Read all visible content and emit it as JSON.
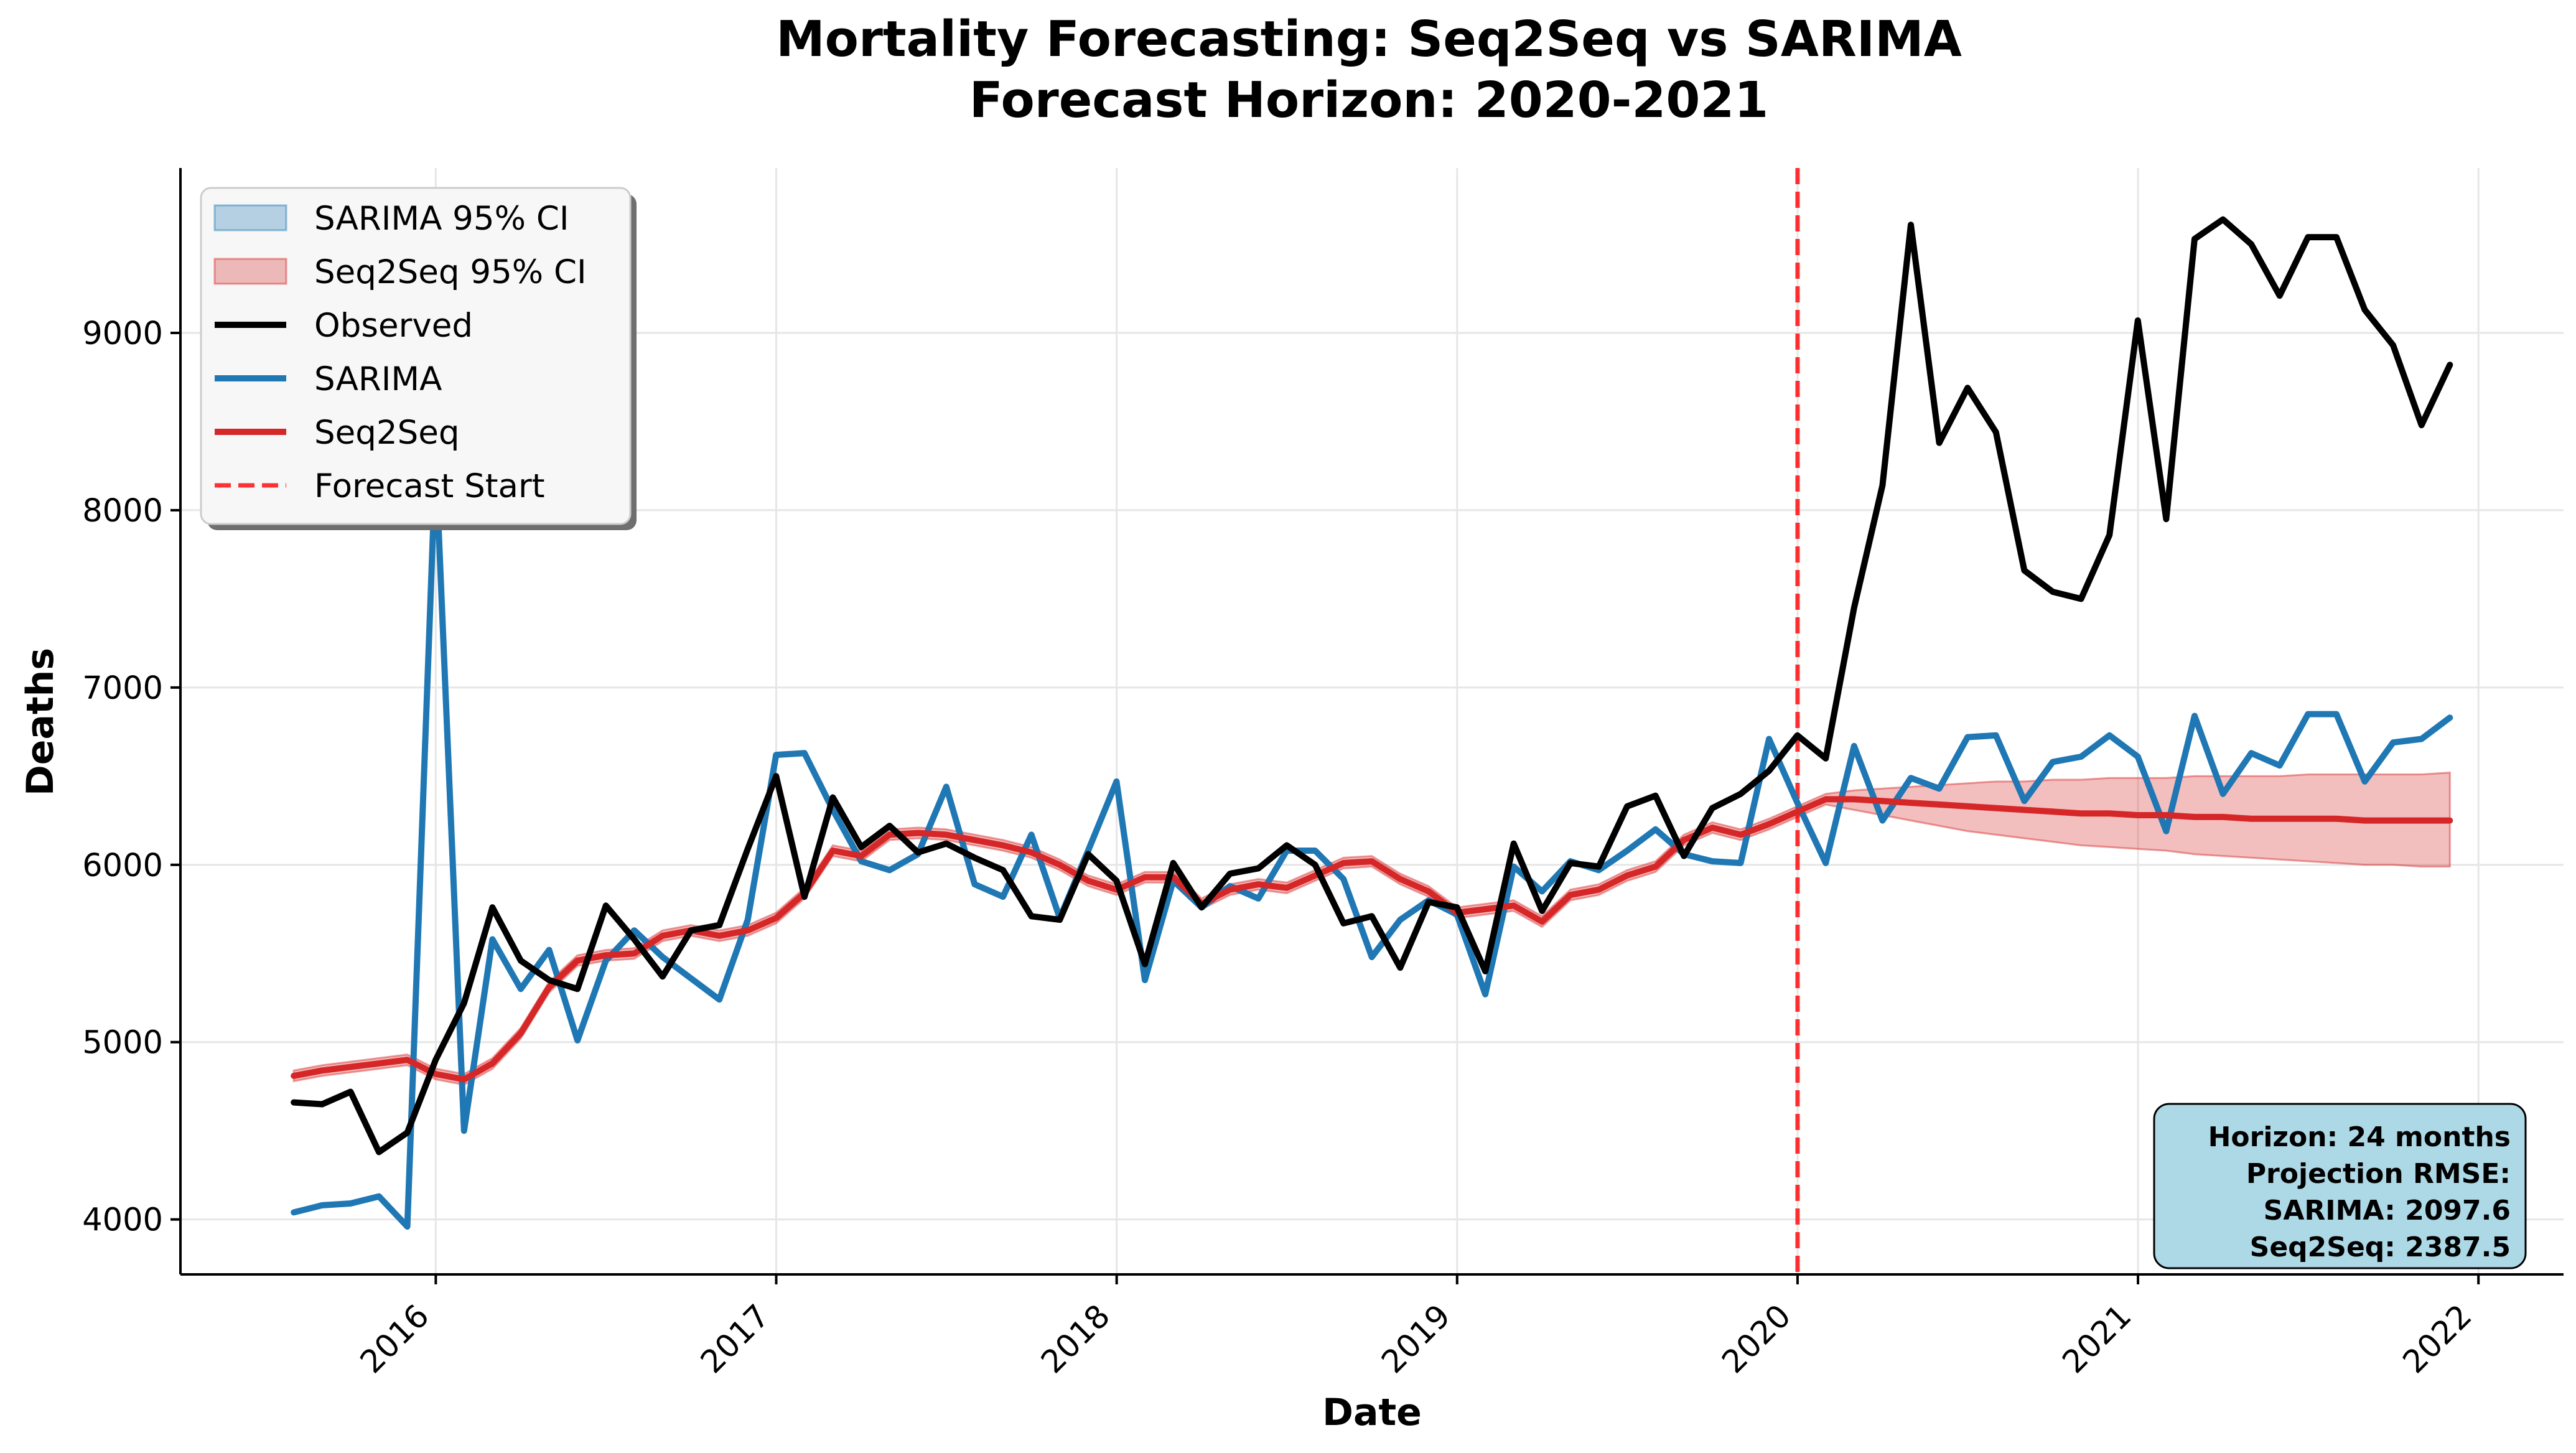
{
  "chart_data": {
    "type": "line",
    "title": [
      "Mortality Forecasting: Seq2Seq vs SARIMA",
      "Forecast Horizon: 2020-2021"
    ],
    "xlabel": "Date",
    "ylabel": "Deaths",
    "xlim": [
      2015.25,
      2022.25
    ],
    "ylim": [
      3690,
      9930
    ],
    "x_ticks": [
      2016,
      2017,
      2018,
      2019,
      2020,
      2021,
      2022
    ],
    "x_tick_labels": [
      "2016",
      "2017",
      "2018",
      "2019",
      "2020",
      "2021",
      "2022"
    ],
    "y_ticks": [
      4000,
      5000,
      6000,
      7000,
      8000,
      9000
    ],
    "y_tick_labels": [
      "4000",
      "5000",
      "6000",
      "7000",
      "8000",
      "9000"
    ],
    "grid": true,
    "legend_position": "upper-left",
    "x_start": 2015.583,
    "x_step": 0.08333,
    "forecast_start": 2020.0,
    "forecast_start_label": "Forecast Start",
    "series": [
      {
        "name": "Observed",
        "color": "#000000",
        "values": [
          4660,
          4650,
          4720,
          4380,
          4490,
          4900,
          5220,
          5760,
          5460,
          5350,
          5300,
          5770,
          5580,
          5370,
          5630,
          5660,
          6090,
          6500,
          5820,
          6380,
          6100,
          6220,
          6070,
          6120,
          6040,
          5970,
          5710,
          5690,
          6060,
          5910,
          5440,
          6010,
          5760,
          5950,
          5980,
          6110,
          6000,
          5670,
          5710,
          5420,
          5790,
          5760,
          5400,
          6120,
          5740,
          6010,
          5990,
          6330,
          6390,
          6050,
          6320,
          6400,
          6530,
          6730,
          6600,
          7450,
          8140,
          9610,
          8380,
          8690,
          8440,
          7660,
          7540,
          7500,
          7860,
          9070,
          7950,
          9530,
          9640,
          9500,
          9210,
          9540,
          9540,
          9130,
          8930,
          8480,
          8820
        ]
      },
      {
        "name": "SARIMA",
        "color": "#1f77b4",
        "values": [
          4040,
          4080,
          4090,
          4130,
          3960,
          8290,
          4500,
          5580,
          5300,
          5520,
          5010,
          5460,
          5630,
          5480,
          5360,
          5240,
          5690,
          6620,
          6630,
          6310,
          6020,
          5970,
          6060,
          6440,
          5890,
          5820,
          6170,
          5700,
          6080,
          6470,
          5350,
          5910,
          5760,
          5880,
          5810,
          6080,
          6080,
          5920,
          5480,
          5690,
          5800,
          5720,
          5270,
          5990,
          5850,
          6020,
          5970,
          6080,
          6200,
          6060,
          6020,
          6010,
          6710,
          6350,
          6010,
          6670,
          6250,
          6490,
          6430,
          6720,
          6730,
          6360,
          6580,
          6610,
          6730,
          6610,
          6190,
          6840,
          6400,
          6630,
          6560,
          6850,
          6850,
          6470,
          6690,
          6710,
          6830
        ]
      },
      {
        "name": "Seq2Seq",
        "color": "#d62728",
        "values": [
          4810,
          4840,
          4860,
          4880,
          4900,
          4820,
          4790,
          4880,
          5050,
          5310,
          5460,
          5490,
          5500,
          5600,
          5630,
          5600,
          5630,
          5700,
          5840,
          6080,
          6050,
          6170,
          6180,
          6170,
          6140,
          6110,
          6070,
          6000,
          5910,
          5860,
          5930,
          5930,
          5780,
          5860,
          5890,
          5870,
          5940,
          6010,
          6020,
          5920,
          5850,
          5730,
          5750,
          5770,
          5680,
          5830,
          5860,
          5940,
          5990,
          6140,
          6210,
          6170,
          6230,
          6300,
          6370,
          6370,
          6360,
          6350,
          6340,
          6330,
          6320,
          6310,
          6300,
          6290,
          6290,
          6280,
          6280,
          6270,
          6270,
          6260,
          6260,
          6260,
          6260,
          6250,
          6250,
          6250,
          6250
        ]
      }
    ],
    "bands": [
      {
        "name": "SARIMA 95% CI",
        "color": "#1f77b4",
        "opacity": 0.3,
        "lower": [],
        "upper": []
      },
      {
        "name": "Seq2Seq 95% CI",
        "color": "#d62728",
        "opacity": 0.3,
        "lower": [
          4780,
          4810,
          4830,
          4850,
          4870,
          4790,
          4760,
          4850,
          5020,
          5280,
          5430,
          5460,
          5470,
          5570,
          5600,
          5570,
          5600,
          5670,
          5810,
          6050,
          6020,
          6140,
          6150,
          6140,
          6110,
          6080,
          6040,
          5970,
          5880,
          5830,
          5900,
          5900,
          5750,
          5830,
          5860,
          5840,
          5910,
          5980,
          5990,
          5890,
          5820,
          5700,
          5720,
          5740,
          5650,
          5800,
          5830,
          5910,
          5960,
          6110,
          6180,
          6140,
          6200,
          6270,
          6340,
          6310,
          6280,
          6250,
          6220,
          6190,
          6170,
          6150,
          6130,
          6110,
          6100,
          6090,
          6080,
          6060,
          6050,
          6040,
          6030,
          6020,
          6010,
          6000,
          6000,
          5990,
          5990
        ],
        "upper": [
          4840,
          4870,
          4890,
          4910,
          4930,
          4850,
          4820,
          4910,
          5080,
          5340,
          5490,
          5520,
          5530,
          5630,
          5660,
          5630,
          5660,
          5730,
          5870,
          6110,
          6080,
          6200,
          6210,
          6200,
          6170,
          6140,
          6100,
          6030,
          5940,
          5890,
          5960,
          5960,
          5810,
          5890,
          5920,
          5900,
          5970,
          6040,
          6050,
          5950,
          5880,
          5760,
          5780,
          5800,
          5710,
          5860,
          5890,
          5970,
          6020,
          6170,
          6240,
          6200,
          6260,
          6330,
          6400,
          6420,
          6430,
          6440,
          6450,
          6460,
          6470,
          6470,
          6480,
          6480,
          6490,
          6490,
          6490,
          6500,
          6500,
          6500,
          6500,
          6510,
          6510,
          6510,
          6510,
          6510,
          6520
        ]
      }
    ],
    "legend": [
      "SARIMA 95% CI",
      "Seq2Seq 95% CI",
      "Observed",
      "SARIMA",
      "Seq2Seq",
      "Forecast Start"
    ],
    "annotation": [
      "Horizon: 24 months",
      "Projection RMSE:",
      "SARIMA: 2097.6",
      "Seq2Seq: 2387.5"
    ],
    "annotation_bg": "#add8e6",
    "forecast_line_color": "#ff0000"
  }
}
